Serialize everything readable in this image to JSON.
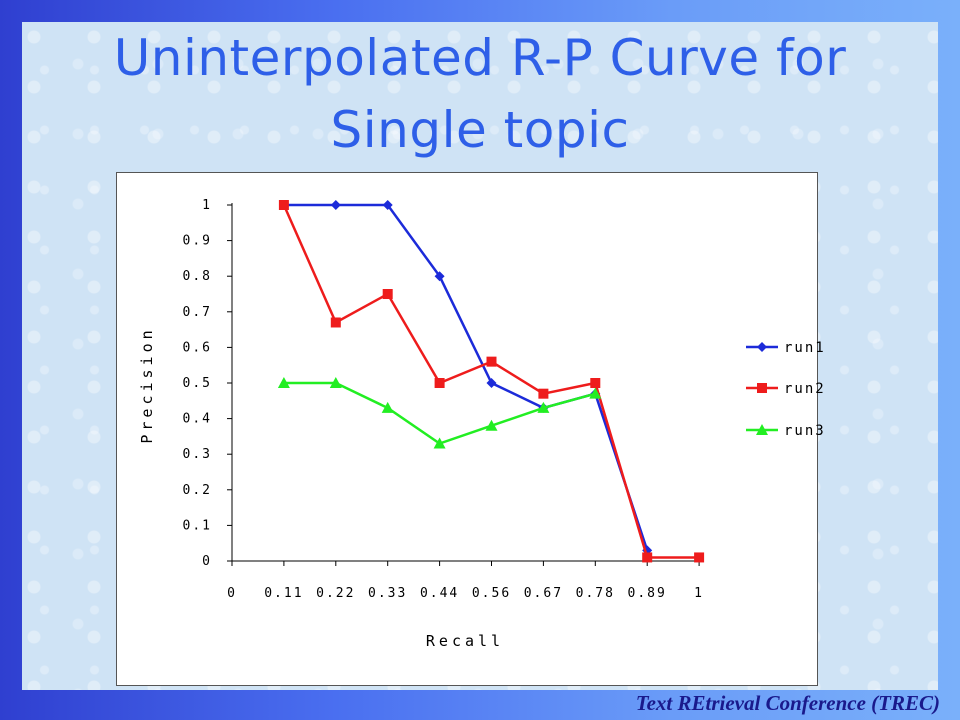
{
  "slide": {
    "title_line1": "Uninterpolated R-P Curve for",
    "title_line2": "Single topic",
    "footer": "Text REtrieval Conference (TREC)"
  },
  "colors": {
    "title": "#2e5fe8",
    "run1": "#1c2bd9",
    "run2": "#ee1c1c",
    "run3": "#22ee22"
  },
  "chart_data": {
    "type": "line",
    "title": "",
    "xlabel": "Recall",
    "ylabel": "Precision",
    "categories": [
      "0",
      "0.11",
      "0.22",
      "0.33",
      "0.44",
      "0.56",
      "0.67",
      "0.78",
      "0.89",
      "1"
    ],
    "y_ticks": [
      "0",
      "0.1",
      "0.2",
      "0.3",
      "0.4",
      "0.5",
      "0.6",
      "0.7",
      "0.8",
      "0.9",
      "1"
    ],
    "ylim": [
      0,
      1
    ],
    "grid": false,
    "legend_position": "right",
    "series": [
      {
        "name": "run1",
        "marker": "diamond",
        "color": "#1c2bd9",
        "values": [
          null,
          1.0,
          1.0,
          1.0,
          0.8,
          0.5,
          0.43,
          0.47,
          0.03,
          null
        ]
      },
      {
        "name": "run2",
        "marker": "square",
        "color": "#ee1c1c",
        "values": [
          null,
          1.0,
          0.67,
          0.75,
          0.5,
          0.56,
          0.47,
          0.5,
          0.01,
          0.01
        ]
      },
      {
        "name": "run3",
        "marker": "triangle",
        "color": "#22ee22",
        "values": [
          null,
          0.5,
          0.5,
          0.43,
          0.33,
          0.38,
          0.43,
          0.47,
          null,
          null
        ]
      }
    ]
  }
}
